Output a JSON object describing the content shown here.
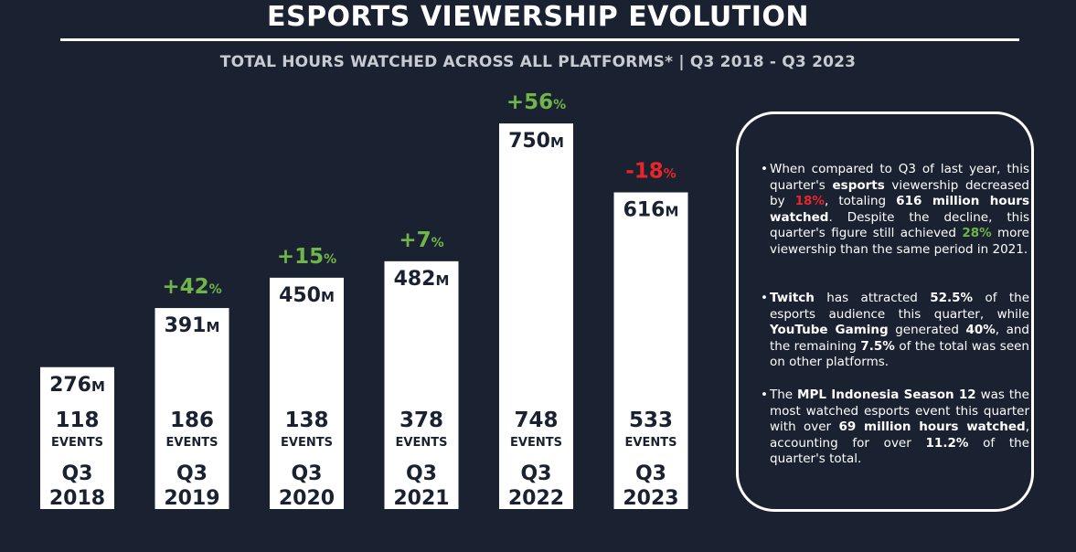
{
  "header": {
    "title": "ESPORTS VIEWERSHIP EVOLUTION",
    "subtitle": "TOTAL HOURS WATCHED ACROSS ALL PLATFORMS* | Q3 2018 - Q3 2023"
  },
  "colors": {
    "background": "#1a2130",
    "bar": "#ffffff",
    "positive": "#6fb54a",
    "negative": "#e8262a",
    "bar_text": "#1a2130"
  },
  "chart_data": {
    "type": "bar",
    "categories": [
      "Q3 2018",
      "Q3 2019",
      "Q3 2020",
      "Q3 2021",
      "Q3 2022",
      "Q3 2023"
    ],
    "category_lines": [
      [
        "Q3",
        "2018"
      ],
      [
        "Q3",
        "2019"
      ],
      [
        "Q3",
        "2020"
      ],
      [
        "Q3",
        "2021"
      ],
      [
        "Q3",
        "2022"
      ],
      [
        "Q3",
        "2023"
      ]
    ],
    "series": [
      {
        "values": [
          276,
          391,
          450,
          482,
          750,
          616
        ]
      }
    ],
    "value_labels": [
      "276M",
      "391M",
      "450M",
      "482M",
      "750M",
      "616M"
    ],
    "events": [
      118,
      186,
      138,
      378,
      748,
      533
    ],
    "events_label": "EVENTS",
    "changes": [
      null,
      "+42%",
      "+15%",
      "+7%",
      "+56%",
      "-18%"
    ],
    "change_signs": [
      null,
      "positive",
      "positive",
      "positive",
      "positive",
      "negative"
    ],
    "ylim": [
      0,
      800
    ],
    "grid": false
  },
  "panel": {
    "bullet1": {
      "t1": "When compared to Q3 of last year, this quarter's ",
      "b1": "esports",
      "t2": " viewership decreased by ",
      "r1": "18%",
      "t3": ", totaling ",
      "b2": "616 million hours watched",
      "t4": ". Despite the decline, this quarter's figure still achieved ",
      "g1": "28%",
      "t5": " more viewership than the same period in 2021."
    },
    "bullet2": {
      "b1": "Twitch",
      "t1": " has attracted ",
      "b2": "52.5%",
      "t2": " of the esports audience this quarter, while ",
      "b3": "YouTube Gaming",
      "t3": " generated ",
      "b4": "40%",
      "t4": ", and the remaining ",
      "b5": "7.5%",
      "t5": " of the total was seen on other platforms."
    },
    "bullet3": {
      "t1": "The ",
      "b1": "MPL Indonesia Season 12",
      "t2": " was the most watched esports event this quarter with over ",
      "b2": "69 million hours watched",
      "t3": ", accounting for over ",
      "b3": "11.2%",
      "t4": " of the quarter's total."
    }
  }
}
